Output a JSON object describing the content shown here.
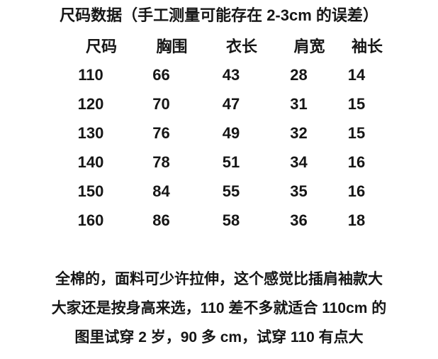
{
  "page": {
    "title": "尺码数据（手工测量可能存在 2-3cm 的误差）",
    "background_color": "#ffffff",
    "text_color": "#161616"
  },
  "size_table": {
    "headers": [
      "尺码",
      "胸围",
      "衣长",
      "肩宽",
      "袖长"
    ],
    "rows": [
      [
        "110",
        "66",
        "43",
        "28",
        "14"
      ],
      [
        "120",
        "70",
        "47",
        "31",
        "15"
      ],
      [
        "130",
        "76",
        "49",
        "32",
        "15"
      ],
      [
        "140",
        "78",
        "51",
        "34",
        "16"
      ],
      [
        "150",
        "84",
        "55",
        "35",
        "16"
      ],
      [
        "160",
        "86",
        "58",
        "36",
        "18"
      ]
    ]
  },
  "notes": {
    "lines": [
      "全棉的，面料可少许拉伸，这个感觉比插肩袖款大",
      "大家还是按身高来选，110 差不多就适合 110cm 的",
      "图里试穿 2 岁，90 多 cm，试穿 110 有点大"
    ]
  }
}
